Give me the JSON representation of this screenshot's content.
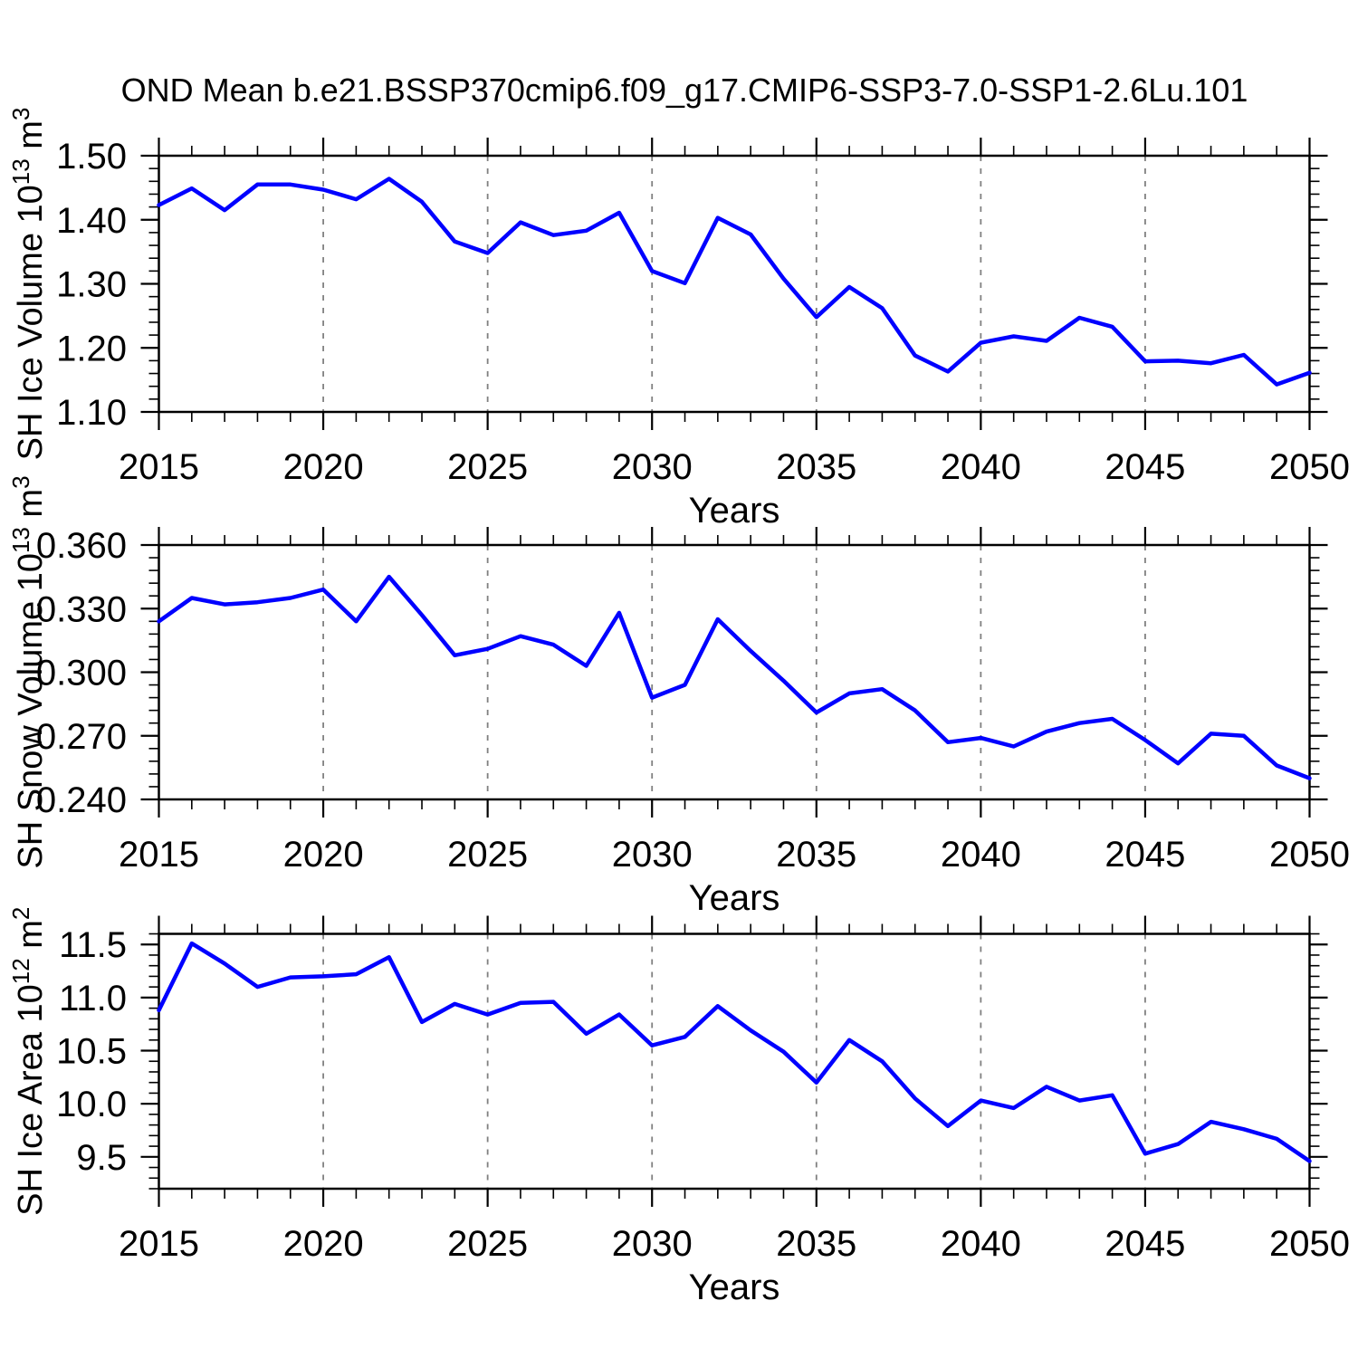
{
  "title": "OND Mean b.e21.BSSP370cmip6.f09_g17.CMIP6-SSP3-7.0-SSP1-2.6Lu.101",
  "colors": {
    "line": "#0000ff",
    "frame": "#000000",
    "grid": "#808080",
    "text": "#000000",
    "background": "#ffffff"
  },
  "x_axis": {
    "label": "Years",
    "min": 2015,
    "max": 2050,
    "major_ticks": [
      2015,
      2020,
      2025,
      2030,
      2035,
      2040,
      2045,
      2050
    ],
    "major_tick_labels": [
      "2015",
      "2020",
      "2025",
      "2030",
      "2035",
      "2040",
      "2045",
      "2050"
    ],
    "minor_step": 1,
    "grid_years": [
      2020,
      2025,
      2030,
      2035,
      2040,
      2045
    ]
  },
  "chart_data": [
    {
      "type": "line",
      "name": "sh-ice-volume",
      "ylabel": "SH Ice Volume 10^{13} m^{3}",
      "ylim": [
        1.1,
        1.5
      ],
      "yticks": [
        1.1,
        1.2,
        1.3,
        1.4,
        1.5
      ],
      "ytick_labels": [
        "1.10",
        "1.20",
        "1.30",
        "1.40",
        "1.50"
      ],
      "y_minor_step": 0.02,
      "grid": "x-dashed",
      "x": [
        2015,
        2016,
        2017,
        2018,
        2019,
        2020,
        2021,
        2022,
        2023,
        2024,
        2025,
        2026,
        2027,
        2028,
        2029,
        2030,
        2031,
        2032,
        2033,
        2034,
        2035,
        2036,
        2037,
        2038,
        2039,
        2040,
        2041,
        2042,
        2043,
        2044,
        2045,
        2046,
        2047,
        2048,
        2049,
        2050
      ],
      "values": [
        1.423,
        1.449,
        1.415,
        1.455,
        1.455,
        1.447,
        1.432,
        1.464,
        1.428,
        1.366,
        1.348,
        1.396,
        1.376,
        1.383,
        1.411,
        1.32,
        1.301,
        1.403,
        1.377,
        1.308,
        1.248,
        1.295,
        1.262,
        1.188,
        1.163,
        1.208,
        1.218,
        1.211,
        1.247,
        1.233,
        1.179,
        1.18,
        1.176,
        1.189,
        1.143,
        1.161
      ]
    },
    {
      "type": "line",
      "name": "sh-snow-volume",
      "ylabel": "SH Snow Volume 10^{13} m^{3}",
      "ylim": [
        0.24,
        0.36
      ],
      "yticks": [
        0.24,
        0.27,
        0.3,
        0.33,
        0.36
      ],
      "ytick_labels": [
        "0.240",
        "0.270",
        "0.300",
        "0.330",
        "0.360"
      ],
      "y_minor_step": 0.006,
      "grid": "x-dashed",
      "x": [
        2015,
        2016,
        2017,
        2018,
        2019,
        2020,
        2021,
        2022,
        2023,
        2024,
        2025,
        2026,
        2027,
        2028,
        2029,
        2030,
        2031,
        2032,
        2033,
        2034,
        2035,
        2036,
        2037,
        2038,
        2039,
        2040,
        2041,
        2042,
        2043,
        2044,
        2045,
        2046,
        2047,
        2048,
        2049,
        2050
      ],
      "values": [
        0.324,
        0.335,
        0.332,
        0.333,
        0.335,
        0.339,
        0.324,
        0.345,
        0.327,
        0.308,
        0.311,
        0.317,
        0.313,
        0.303,
        0.328,
        0.288,
        0.294,
        0.325,
        0.31,
        0.296,
        0.281,
        0.29,
        0.292,
        0.282,
        0.267,
        0.269,
        0.265,
        0.272,
        0.276,
        0.278,
        0.268,
        0.257,
        0.271,
        0.27,
        0.256,
        0.25
      ]
    },
    {
      "type": "line",
      "name": "sh-ice-area",
      "ylabel": "SH Ice Area 10^{12} m^{2}",
      "ylim": [
        9.2,
        11.6
      ],
      "yticks": [
        9.5,
        10.0,
        10.5,
        11.0,
        11.5
      ],
      "ytick_labels": [
        "9.5",
        "10.0",
        "10.5",
        "11.0",
        "11.5"
      ],
      "y_minor_step": 0.1,
      "grid": "x-dashed",
      "x": [
        2015,
        2016,
        2017,
        2018,
        2019,
        2020,
        2021,
        2022,
        2023,
        2024,
        2025,
        2026,
        2027,
        2028,
        2029,
        2030,
        2031,
        2032,
        2033,
        2034,
        2035,
        2036,
        2037,
        2038,
        2039,
        2040,
        2041,
        2042,
        2043,
        2044,
        2045,
        2046,
        2047,
        2048,
        2049,
        2050
      ],
      "values": [
        10.88,
        11.51,
        11.32,
        11.1,
        11.19,
        11.2,
        11.22,
        11.38,
        10.77,
        10.94,
        10.84,
        10.95,
        10.96,
        10.66,
        10.84,
        10.55,
        10.63,
        10.92,
        10.69,
        10.49,
        10.2,
        10.6,
        10.4,
        10.05,
        9.79,
        10.03,
        9.96,
        10.16,
        10.03,
        10.08,
        9.53,
        9.62,
        9.83,
        9.76,
        9.67,
        9.46
      ]
    }
  ]
}
